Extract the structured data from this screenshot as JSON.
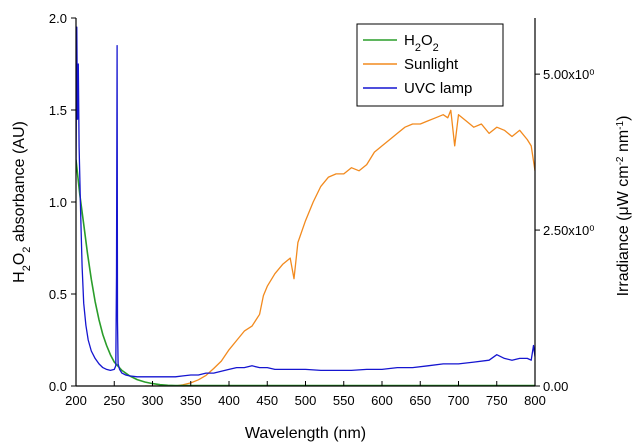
{
  "chart_data": {
    "type": "line",
    "title": "",
    "xlabel": "Wavelength (nm)",
    "ylabel_left": "H2O2 absorbance (AU)",
    "ylabel_right": "Irradiance (μW cm-2 nm-1)",
    "xlim": [
      200,
      800
    ],
    "ylim_left": [
      0,
      2.0
    ],
    "ylim_right": [
      0,
      5.9
    ],
    "x_ticks": [
      200,
      250,
      300,
      350,
      400,
      450,
      500,
      550,
      600,
      650,
      700,
      750,
      800
    ],
    "y_left_ticks": [
      0.0,
      0.5,
      1.0,
      1.5,
      2.0
    ],
    "y_left_tick_labels": [
      "0.0",
      "0.5",
      "1.0",
      "1.5",
      "2.0"
    ],
    "y_right_ticks": [
      0,
      2.5,
      5.0
    ],
    "y_right_tick_labels": [
      "0.00",
      "2.50x10⁰",
      "5.00x10⁰"
    ],
    "grid": false,
    "legend_position": "top-right",
    "series": [
      {
        "name": "H2O2",
        "axis": "left",
        "color": "#2a9d2a",
        "x": [
          200,
          205,
          210,
          215,
          220,
          225,
          230,
          235,
          240,
          245,
          250,
          260,
          270,
          280,
          290,
          300,
          310,
          320,
          330,
          350,
          400,
          500,
          600,
          700,
          800
        ],
        "y": [
          1.23,
          1.04,
          0.88,
          0.72,
          0.58,
          0.46,
          0.36,
          0.28,
          0.22,
          0.17,
          0.13,
          0.085,
          0.055,
          0.035,
          0.022,
          0.013,
          0.007,
          0.004,
          0.002,
          0.002,
          0.002,
          0.002,
          0.002,
          0.002,
          0.002
        ]
      },
      {
        "name": "Sunlight",
        "axis": "right",
        "color": "#f28a1e",
        "x": [
          290,
          300,
          320,
          330,
          340,
          350,
          360,
          370,
          380,
          390,
          400,
          410,
          420,
          430,
          440,
          445,
          450,
          460,
          470,
          480,
          485,
          490,
          500,
          510,
          520,
          530,
          540,
          550,
          560,
          570,
          580,
          590,
          600,
          610,
          620,
          630,
          640,
          650,
          660,
          670,
          680,
          686,
          690,
          695,
          700,
          710,
          720,
          730,
          740,
          750,
          760,
          770,
          780,
          790,
          795,
          800
        ],
        "y": [
          0,
          0,
          0,
          0,
          0.02,
          0.05,
          0.1,
          0.17,
          0.28,
          0.4,
          0.58,
          0.73,
          0.88,
          0.96,
          1.15,
          1.45,
          1.6,
          1.8,
          1.95,
          2.05,
          1.72,
          2.3,
          2.65,
          2.95,
          3.2,
          3.35,
          3.4,
          3.4,
          3.5,
          3.45,
          3.55,
          3.75,
          3.85,
          3.95,
          4.05,
          4.15,
          4.2,
          4.2,
          4.25,
          4.3,
          4.35,
          4.3,
          4.42,
          3.85,
          4.35,
          4.25,
          4.15,
          4.2,
          4.05,
          4.15,
          4.1,
          4.0,
          4.1,
          3.95,
          3.85,
          3.45
        ]
      },
      {
        "name": "UVC lamp",
        "axis": "left",
        "color": "#1515d0",
        "x": [
          200,
          201,
          202,
          203,
          204,
          206,
          208,
          210,
          213,
          216,
          220,
          225,
          230,
          235,
          240,
          245,
          250,
          252,
          253,
          253.7,
          254.3,
          255,
          257,
          260,
          265,
          270,
          280,
          290,
          300,
          310,
          320,
          330,
          340,
          350,
          360,
          370,
          380,
          390,
          400,
          410,
          420,
          430,
          440,
          450,
          460,
          470,
          480,
          490,
          500,
          520,
          540,
          560,
          580,
          600,
          620,
          640,
          660,
          680,
          700,
          720,
          740,
          750,
          760,
          770,
          780,
          790,
          795,
          798,
          800
        ],
        "y": [
          1.2,
          1.95,
          1.45,
          1.75,
          1.3,
          0.95,
          0.65,
          0.45,
          0.33,
          0.25,
          0.19,
          0.15,
          0.12,
          0.1,
          0.09,
          0.085,
          0.09,
          0.11,
          0.6,
          1.85,
          0.35,
          0.12,
          0.09,
          0.07,
          0.06,
          0.055,
          0.05,
          0.05,
          0.05,
          0.05,
          0.05,
          0.05,
          0.055,
          0.06,
          0.06,
          0.07,
          0.07,
          0.08,
          0.09,
          0.1,
          0.1,
          0.11,
          0.1,
          0.1,
          0.09,
          0.09,
          0.09,
          0.09,
          0.09,
          0.085,
          0.085,
          0.085,
          0.09,
          0.09,
          0.1,
          0.1,
          0.11,
          0.12,
          0.12,
          0.13,
          0.14,
          0.17,
          0.15,
          0.14,
          0.15,
          0.15,
          0.14,
          0.22,
          0.16
        ]
      }
    ]
  }
}
